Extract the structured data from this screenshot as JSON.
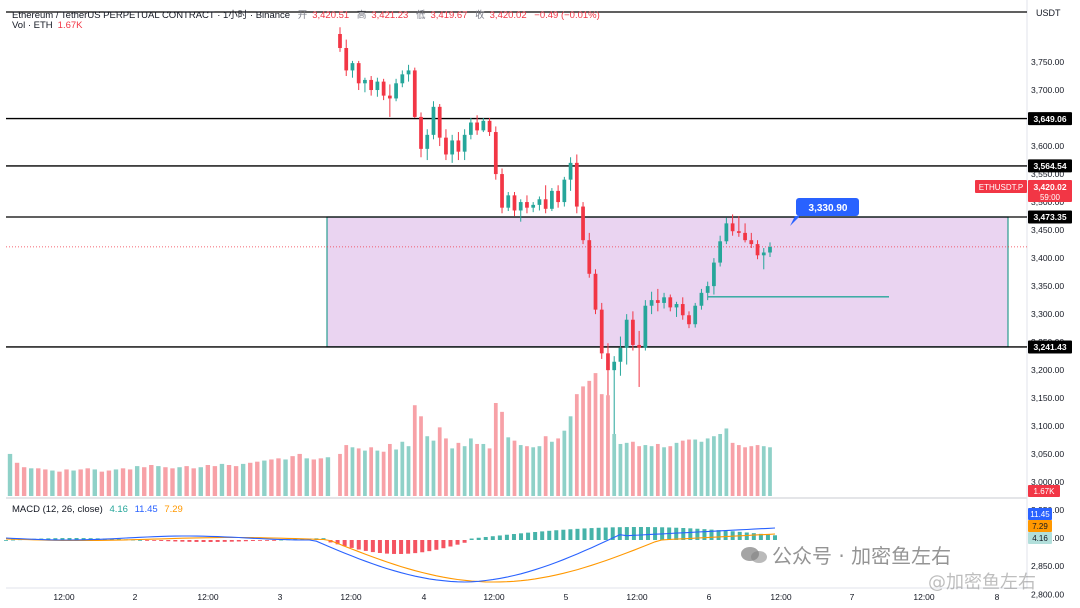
{
  "header": {
    "title": "Ethereum / TetherUS PERPETUAL CONTRACT · 1小时 · Binance",
    "open_label": "开",
    "open_value": "3,420.51",
    "high_label": "高",
    "high_value": "3,421.23",
    "low_label": "低",
    "low_value": "3,419.67",
    "close_label": "收",
    "close_value": "3,420.02",
    "change": "−0.49 (−0.01%)",
    "volume_label": "Vol · ETH",
    "volume_value": "1.67K"
  },
  "currency": "USDT",
  "price_axis": {
    "ticks": [
      "3,750.00",
      "3,700.00",
      "3,650.00",
      "3,600.00",
      "3,550.00",
      "3,500.00",
      "3,450.00",
      "3,400.00",
      "3,350.00",
      "3,300.00",
      "3,250.00",
      "3,200.00",
      "3,150.00",
      "3,100.00",
      "3,050.00",
      "3,000.00",
      "2,950.00",
      "2,900.00",
      "2,850.00",
      "2,800.00"
    ]
  },
  "time_axis": {
    "labels": [
      "12:00",
      "2",
      "12:00",
      "3",
      "12:00",
      "4",
      "12:00",
      "5",
      "12:00",
      "6",
      "12:00",
      "7",
      "12:00",
      "8"
    ]
  },
  "price_labels": {
    "line_3649": "3,649.06",
    "line_3564": "3,564.54",
    "line_3473": "3,473.35",
    "line_3241": "3,241.43",
    "symbol": "ETHUSDT.P",
    "last_price": "3,420.02",
    "countdown": "59:00",
    "annotation": "3,330.90",
    "volume_tag": "1.67K",
    "macd_tag": "11.45",
    "signal_tag": "7.29",
    "hist_tag": "4.16"
  },
  "macd_legend": {
    "name": "MACD (12, 26, close)",
    "hist": "4.16",
    "macd": "11.45",
    "signal": "7.29"
  },
  "watermark": {
    "text": "公众号 · 加密鱼左右",
    "text2": "@加密鱼左右"
  },
  "colors": {
    "up": "#26a69a",
    "down": "#f23645",
    "vol_up": "#8fd1c8",
    "vol_down": "#f7a1a7",
    "zone_fill": "#e6cdee",
    "zone_border": "#2a9d8f",
    "macd_line": "#2962ff",
    "signal_line": "#ff9800",
    "annotation": "#2962ff"
  },
  "chart_data": {
    "type": "candlestick",
    "series_name": "ETHUSDT.P",
    "timeframe": "1h",
    "ylim": [
      3020,
      3800
    ],
    "horizontal_lines": [
      3649.06,
      3564.54,
      3473.35,
      3241.43
    ],
    "zone": {
      "top": 3473.35,
      "bottom": 3241.43
    },
    "annotation_line": 3330.9,
    "last_price": 3420.02,
    "candles": [
      {
        "o": 3800,
        "h": 3812,
        "l": 3768,
        "c": 3775
      },
      {
        "o": 3775,
        "h": 3790,
        "l": 3725,
        "c": 3735
      },
      {
        "o": 3735,
        "h": 3752,
        "l": 3722,
        "c": 3748
      },
      {
        "o": 3748,
        "h": 3752,
        "l": 3700,
        "c": 3712
      },
      {
        "o": 3712,
        "h": 3722,
        "l": 3696,
        "c": 3718
      },
      {
        "o": 3718,
        "h": 3725,
        "l": 3690,
        "c": 3700
      },
      {
        "o": 3700,
        "h": 3722,
        "l": 3688,
        "c": 3715
      },
      {
        "o": 3715,
        "h": 3720,
        "l": 3682,
        "c": 3690
      },
      {
        "o": 3690,
        "h": 3710,
        "l": 3652,
        "c": 3685
      },
      {
        "o": 3685,
        "h": 3720,
        "l": 3680,
        "c": 3712
      },
      {
        "o": 3712,
        "h": 3735,
        "l": 3705,
        "c": 3728
      },
      {
        "o": 3728,
        "h": 3745,
        "l": 3715,
        "c": 3735
      },
      {
        "o": 3735,
        "h": 3740,
        "l": 3650,
        "c": 3652
      },
      {
        "o": 3652,
        "h": 3660,
        "l": 3580,
        "c": 3595
      },
      {
        "o": 3595,
        "h": 3630,
        "l": 3575,
        "c": 3620
      },
      {
        "o": 3620,
        "h": 3680,
        "l": 3612,
        "c": 3670
      },
      {
        "o": 3670,
        "h": 3675,
        "l": 3600,
        "c": 3615
      },
      {
        "o": 3615,
        "h": 3630,
        "l": 3575,
        "c": 3585
      },
      {
        "o": 3585,
        "h": 3620,
        "l": 3570,
        "c": 3610
      },
      {
        "o": 3610,
        "h": 3625,
        "l": 3575,
        "c": 3590
      },
      {
        "o": 3590,
        "h": 3630,
        "l": 3575,
        "c": 3620
      },
      {
        "o": 3620,
        "h": 3650,
        "l": 3612,
        "c": 3642
      },
      {
        "o": 3642,
        "h": 3655,
        "l": 3620,
        "c": 3628
      },
      {
        "o": 3628,
        "h": 3650,
        "l": 3625,
        "c": 3645
      },
      {
        "o": 3645,
        "h": 3650,
        "l": 3618,
        "c": 3625
      },
      {
        "o": 3625,
        "h": 3635,
        "l": 3540,
        "c": 3550
      },
      {
        "o": 3550,
        "h": 3560,
        "l": 3480,
        "c": 3490
      },
      {
        "o": 3490,
        "h": 3518,
        "l": 3484,
        "c": 3512
      },
      {
        "o": 3512,
        "h": 3518,
        "l": 3475,
        "c": 3485
      },
      {
        "o": 3485,
        "h": 3505,
        "l": 3465,
        "c": 3500
      },
      {
        "o": 3500,
        "h": 3512,
        "l": 3480,
        "c": 3490
      },
      {
        "o": 3490,
        "h": 3500,
        "l": 3482,
        "c": 3495
      },
      {
        "o": 3495,
        "h": 3510,
        "l": 3485,
        "c": 3505
      },
      {
        "o": 3505,
        "h": 3530,
        "l": 3480,
        "c": 3488
      },
      {
        "o": 3488,
        "h": 3525,
        "l": 3484,
        "c": 3520
      },
      {
        "o": 3520,
        "h": 3530,
        "l": 3490,
        "c": 3500
      },
      {
        "o": 3500,
        "h": 3545,
        "l": 3492,
        "c": 3540
      },
      {
        "o": 3540,
        "h": 3580,
        "l": 3520,
        "c": 3570
      },
      {
        "o": 3570,
        "h": 3585,
        "l": 3480,
        "c": 3492
      },
      {
        "o": 3492,
        "h": 3500,
        "l": 3425,
        "c": 3432
      },
      {
        "o": 3432,
        "h": 3445,
        "l": 3365,
        "c": 3372
      },
      {
        "o": 3372,
        "h": 3380,
        "l": 3300,
        "c": 3308
      },
      {
        "o": 3308,
        "h": 3320,
        "l": 3220,
        "c": 3230
      },
      {
        "o": 3230,
        "h": 3248,
        "l": 3140,
        "c": 3200
      },
      {
        "o": 3200,
        "h": 3225,
        "l": 3055,
        "c": 3215
      },
      {
        "o": 3215,
        "h": 3260,
        "l": 3190,
        "c": 3240
      },
      {
        "o": 3240,
        "h": 3300,
        "l": 3210,
        "c": 3290
      },
      {
        "o": 3290,
        "h": 3305,
        "l": 3235,
        "c": 3245
      },
      {
        "o": 3245,
        "h": 3270,
        "l": 3170,
        "c": 3240
      },
      {
        "o": 3240,
        "h": 3325,
        "l": 3235,
        "c": 3315
      },
      {
        "o": 3315,
        "h": 3340,
        "l": 3300,
        "c": 3325
      },
      {
        "o": 3325,
        "h": 3345,
        "l": 3305,
        "c": 3320
      },
      {
        "o": 3320,
        "h": 3338,
        "l": 3310,
        "c": 3330
      },
      {
        "o": 3330,
        "h": 3335,
        "l": 3305,
        "c": 3312
      },
      {
        "o": 3312,
        "h": 3322,
        "l": 3295,
        "c": 3318
      },
      {
        "o": 3318,
        "h": 3330,
        "l": 3290,
        "c": 3298
      },
      {
        "o": 3298,
        "h": 3305,
        "l": 3275,
        "c": 3282
      },
      {
        "o": 3282,
        "h": 3320,
        "l": 3276,
        "c": 3315
      },
      {
        "o": 3315,
        "h": 3345,
        "l": 3308,
        "c": 3338
      },
      {
        "o": 3338,
        "h": 3358,
        "l": 3325,
        "c": 3350
      },
      {
        "o": 3350,
        "h": 3400,
        "l": 3335,
        "c": 3392
      },
      {
        "o": 3392,
        "h": 3440,
        "l": 3385,
        "c": 3430
      },
      {
        "o": 3430,
        "h": 3472,
        "l": 3425,
        "c": 3462
      },
      {
        "o": 3462,
        "h": 3478,
        "l": 3440,
        "c": 3448
      },
      {
        "o": 3448,
        "h": 3475,
        "l": 3438,
        "c": 3445
      },
      {
        "o": 3445,
        "h": 3462,
        "l": 3428,
        "c": 3432
      },
      {
        "o": 3432,
        "h": 3445,
        "l": 3418,
        "c": 3425
      },
      {
        "o": 3425,
        "h": 3432,
        "l": 3398,
        "c": 3405
      },
      {
        "o": 3405,
        "h": 3418,
        "l": 3380,
        "c": 3410
      },
      {
        "o": 3410,
        "h": 3428,
        "l": 3402,
        "c": 3420
      }
    ],
    "volume": [
      1900,
      2300,
      2200,
      2150,
      2050,
      2200,
      2050,
      2000,
      2350,
      2100,
      2450,
      2250,
      4100,
      3600,
      2700,
      2500,
      3100,
      2600,
      2150,
      2400,
      2250,
      2600,
      2350,
      2350,
      2150,
      4200,
      3800,
      2650,
      2500,
      2300,
      2250,
      2200,
      2250,
      2700,
      2450,
      2600,
      2950,
      3600,
      4600,
      4950,
      5200,
      5550,
      4600,
      4550,
      2800,
      2350,
      2400,
      2450,
      2250,
      2300,
      2250,
      2350,
      2200,
      2250,
      2400,
      2500,
      2550,
      2550,
      2450,
      2600,
      2700,
      2800,
      3050,
      2400,
      2300,
      2200,
      2250,
      2300,
      2250,
      2200
    ],
    "macd": {
      "hist": [
        4.16
      ],
      "macd": [
        11.45
      ],
      "signal": [
        7.29
      ]
    }
  }
}
